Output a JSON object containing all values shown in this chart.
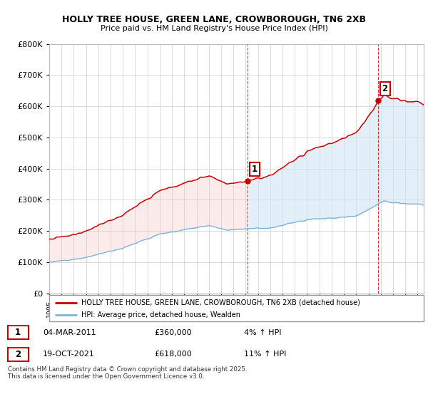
{
  "title1": "HOLLY TREE HOUSE, GREEN LANE, CROWBOROUGH, TN6 2XB",
  "title2": "Price paid vs. HM Land Registry's House Price Index (HPI)",
  "ytick_values": [
    0,
    100000,
    200000,
    300000,
    400000,
    500000,
    600000,
    700000,
    800000
  ],
  "ylim": [
    0,
    800000
  ],
  "xlim_start": 1995.0,
  "xlim_end": 2025.5,
  "sale1": {
    "date_num": 2011.17,
    "price": 360000,
    "label": "1"
  },
  "sale2": {
    "date_num": 2021.8,
    "price": 618000,
    "label": "2"
  },
  "legend_line1": "HOLLY TREE HOUSE, GREEN LANE, CROWBOROUGH, TN6 2XB (detached house)",
  "legend_line2": "HPI: Average price, detached house, Wealden",
  "annotation1_date": "04-MAR-2011",
  "annotation1_price": "£360,000",
  "annotation1_hpi": "4% ↑ HPI",
  "annotation2_date": "19-OCT-2021",
  "annotation2_price": "£618,000",
  "annotation2_hpi": "11% ↑ HPI",
  "footer": "Contains HM Land Registry data © Crown copyright and database right 2025.\nThis data is licensed under the Open Government Licence v3.0.",
  "red_color": "#cc0000",
  "blue_color": "#7ab3d9",
  "fill_blue": "#d0e5f5",
  "fill_red": "#f5c0c0",
  "grid_color": "#cccccc",
  "hpi_base": 100000,
  "prop_base": 102000
}
